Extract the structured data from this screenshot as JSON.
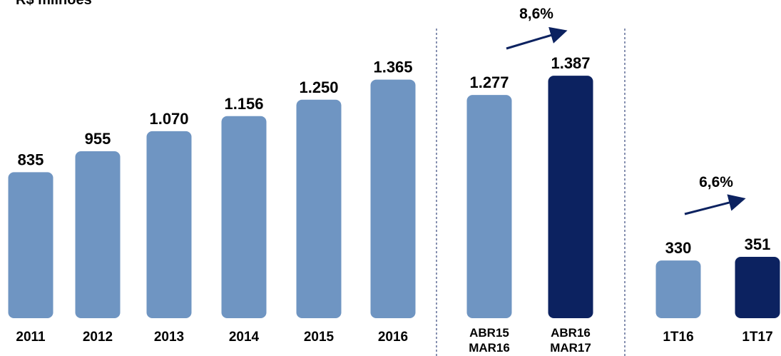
{
  "title": "R$ milhões",
  "chart_data": [
    {
      "type": "bar",
      "categories": [
        "2011",
        "2012",
        "2013",
        "2014",
        "2015",
        "2016"
      ],
      "values": [
        835,
        955,
        1070,
        1156,
        1250,
        1365
      ],
      "value_labels": [
        "835",
        "955",
        "1.070",
        "1.156",
        "1.250",
        "1.365"
      ],
      "colors": [
        "#6f95c2",
        "#6f95c2",
        "#6f95c2",
        "#6f95c2",
        "#6f95c2",
        "#6f95c2"
      ]
    },
    {
      "type": "bar",
      "categories": [
        "ABR15\nMAR16",
        "ABR16\nMAR17"
      ],
      "values": [
        1277,
        1387
      ],
      "value_labels": [
        "1.277",
        "1.387"
      ],
      "colors": [
        "#6f95c2",
        "#0c2260"
      ],
      "annotation": "8,6%"
    },
    {
      "type": "bar",
      "categories": [
        "1T16",
        "1T17"
      ],
      "values": [
        330,
        351
      ],
      "value_labels": [
        "330",
        "351"
      ],
      "colors": [
        "#6f95c2",
        "#0c2260"
      ],
      "annotation": "6,6%"
    }
  ]
}
